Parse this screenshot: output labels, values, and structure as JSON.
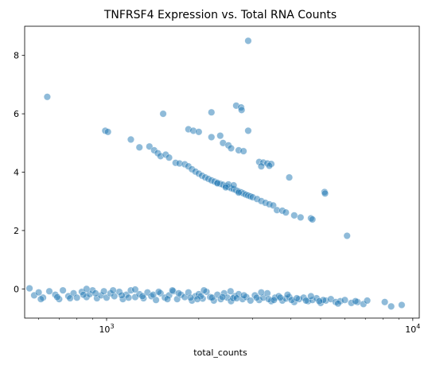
{
  "chart_data": {
    "type": "scatter",
    "title": "TNFRSF4 Expression vs. Total RNA Counts",
    "xlabel": "total_counts",
    "ylabel": "",
    "xscale": "log",
    "xlim": [
      540,
      10500
    ],
    "ylim": [
      -1.0,
      9.0
    ],
    "x_ticks": [
      {
        "value": 1000,
        "label": "10",
        "exp": "3"
      },
      {
        "value": 10000,
        "label": "10",
        "exp": "4"
      }
    ],
    "y_ticks": [
      {
        "value": 0,
        "label": "0"
      },
      {
        "value": 2,
        "label": "2"
      },
      {
        "value": 4,
        "label": "4"
      },
      {
        "value": 6,
        "label": "6"
      },
      {
        "value": 8,
        "label": "8"
      }
    ],
    "grid": false,
    "color": "#1f77b4",
    "series": [
      {
        "values": [
          [
            2900,
            8.5
          ],
          [
            640,
            6.58
          ],
          [
            990,
            5.42
          ],
          [
            1010,
            5.38
          ],
          [
            1530,
            6.0
          ],
          [
            2200,
            6.05
          ],
          [
            2650,
            6.28
          ],
          [
            2750,
            6.22
          ],
          [
            2760,
            6.13
          ],
          [
            1850,
            5.47
          ],
          [
            1920,
            5.42
          ],
          [
            2000,
            5.38
          ],
          [
            2350,
            5.25
          ],
          [
            2900,
            5.42
          ],
          [
            1200,
            5.12
          ],
          [
            2200,
            5.2
          ],
          [
            2400,
            5.0
          ],
          [
            2500,
            4.92
          ],
          [
            2550,
            4.82
          ],
          [
            2700,
            4.75
          ],
          [
            2800,
            4.72
          ],
          [
            1280,
            4.85
          ],
          [
            1380,
            4.88
          ],
          [
            1430,
            4.75
          ],
          [
            1470,
            4.65
          ],
          [
            1500,
            4.55
          ],
          [
            1560,
            4.6
          ],
          [
            1600,
            4.5
          ],
          [
            1680,
            4.32
          ],
          [
            1730,
            4.3
          ],
          [
            1800,
            4.27
          ],
          [
            1850,
            4.2
          ],
          [
            1900,
            4.1
          ],
          [
            1950,
            4.02
          ],
          [
            2000,
            3.95
          ],
          [
            2050,
            3.88
          ],
          [
            2100,
            3.82
          ],
          [
            2150,
            3.77
          ],
          [
            2200,
            3.72
          ],
          [
            2250,
            3.68
          ],
          [
            2300,
            3.64
          ],
          [
            2350,
            3.6
          ],
          [
            2400,
            3.57
          ],
          [
            2450,
            3.53
          ],
          [
            2500,
            3.49
          ],
          [
            2550,
            3.45
          ],
          [
            2600,
            3.42
          ],
          [
            2650,
            3.38
          ],
          [
            2700,
            3.34
          ],
          [
            2750,
            3.31
          ],
          [
            2800,
            3.27
          ],
          [
            2850,
            3.23
          ],
          [
            2900,
            3.2
          ],
          [
            2950,
            3.17
          ],
          [
            3000,
            3.14
          ],
          [
            3100,
            3.08
          ],
          [
            3200,
            3.01
          ],
          [
            3300,
            2.95
          ],
          [
            3400,
            2.9
          ],
          [
            3500,
            2.86
          ],
          [
            2500,
            3.58
          ],
          [
            2600,
            3.55
          ],
          [
            2300,
            3.62
          ],
          [
            2450,
            3.48
          ],
          [
            2700,
            3.3
          ],
          [
            3150,
            4.35
          ],
          [
            3250,
            4.33
          ],
          [
            3350,
            4.3
          ],
          [
            3450,
            4.28
          ],
          [
            3200,
            4.2
          ],
          [
            3400,
            4.22
          ],
          [
            3950,
            3.82
          ],
          [
            3600,
            2.7
          ],
          [
            3750,
            2.68
          ],
          [
            3850,
            2.62
          ],
          [
            4100,
            2.52
          ],
          [
            4300,
            2.45
          ],
          [
            4650,
            2.42
          ],
          [
            4700,
            2.38
          ],
          [
            5150,
            3.32
          ],
          [
            5170,
            3.27
          ],
          [
            6100,
            1.82
          ]
        ]
      },
      {
        "values": [
          [
            560,
            0.02
          ],
          [
            580,
            -0.22
          ],
          [
            600,
            -0.12
          ],
          [
            620,
            -0.3
          ],
          [
            650,
            -0.08
          ],
          [
            680,
            -0.2
          ],
          [
            700,
            -0.35
          ],
          [
            720,
            -0.05
          ],
          [
            750,
            -0.25
          ],
          [
            780,
            -0.15
          ],
          [
            800,
            -0.3
          ],
          [
            830,
            -0.1
          ],
          [
            860,
            -0.28
          ],
          [
            880,
            -0.18
          ],
          [
            900,
            -0.05
          ],
          [
            930,
            -0.32
          ],
          [
            960,
            -0.22
          ],
          [
            980,
            -0.08
          ],
          [
            1000,
            -0.3
          ],
          [
            1030,
            -0.15
          ],
          [
            1060,
            -0.25
          ],
          [
            1100,
            -0.1
          ],
          [
            1130,
            -0.35
          ],
          [
            1160,
            -0.2
          ],
          [
            1200,
            -0.05
          ],
          [
            1240,
            -0.28
          ],
          [
            1280,
            -0.18
          ],
          [
            1320,
            -0.32
          ],
          [
            1360,
            -0.12
          ],
          [
            1400,
            -0.25
          ],
          [
            1450,
            -0.38
          ],
          [
            1500,
            -0.15
          ],
          [
            1550,
            -0.3
          ],
          [
            1600,
            -0.22
          ],
          [
            1650,
            -0.08
          ],
          [
            1700,
            -0.35
          ],
          [
            1750,
            -0.2
          ],
          [
            1800,
            -0.28
          ],
          [
            1850,
            -0.12
          ],
          [
            1900,
            -0.4
          ],
          [
            1950,
            -0.25
          ],
          [
            2000,
            -0.18
          ],
          [
            2060,
            -0.33
          ],
          [
            2120,
            -0.1
          ],
          [
            2180,
            -0.28
          ],
          [
            2240,
            -0.4
          ],
          [
            2300,
            -0.2
          ],
          [
            2360,
            -0.35
          ],
          [
            2420,
            -0.15
          ],
          [
            2480,
            -0.3
          ],
          [
            2550,
            -0.42
          ],
          [
            2620,
            -0.25
          ],
          [
            2700,
            -0.18
          ],
          [
            2780,
            -0.35
          ],
          [
            2860,
            -0.28
          ],
          [
            2950,
            -0.4
          ],
          [
            3050,
            -0.22
          ],
          [
            3150,
            -0.38
          ],
          [
            3250,
            -0.3
          ],
          [
            3350,
            -0.15
          ],
          [
            3450,
            -0.42
          ],
          [
            3550,
            -0.3
          ],
          [
            3650,
            -0.25
          ],
          [
            3750,
            -0.4
          ],
          [
            3850,
            -0.33
          ],
          [
            3950,
            -0.28
          ],
          [
            4100,
            -0.45
          ],
          [
            4250,
            -0.35
          ],
          [
            4400,
            -0.3
          ],
          [
            4550,
            -0.42
          ],
          [
            4700,
            -0.38
          ],
          [
            4850,
            -0.32
          ],
          [
            5000,
            -0.48
          ],
          [
            5200,
            -0.4
          ],
          [
            5400,
            -0.35
          ],
          [
            5600,
            -0.45
          ],
          [
            5800,
            -0.42
          ],
          [
            6000,
            -0.38
          ],
          [
            6300,
            -0.48
          ],
          [
            6600,
            -0.45
          ],
          [
            6900,
            -0.52
          ],
          [
            7100,
            -0.4
          ],
          [
            8100,
            -0.45
          ],
          [
            8500,
            -0.6
          ],
          [
            9200,
            -0.55
          ],
          [
            610,
            -0.35
          ],
          [
            690,
            -0.28
          ],
          [
            760,
            -0.32
          ],
          [
            840,
            -0.2
          ],
          [
            920,
            -0.15
          ],
          [
            1050,
            -0.05
          ],
          [
            1180,
            -0.3
          ],
          [
            1310,
            -0.25
          ],
          [
            1420,
            -0.2
          ],
          [
            1580,
            -0.35
          ],
          [
            1720,
            -0.15
          ],
          [
            1880,
            -0.3
          ],
          [
            2030,
            -0.25
          ],
          [
            2210,
            -0.3
          ],
          [
            2390,
            -0.28
          ],
          [
            2590,
            -0.32
          ],
          [
            2810,
            -0.22
          ],
          [
            3090,
            -0.3
          ],
          [
            3380,
            -0.35
          ],
          [
            3690,
            -0.3
          ],
          [
            4020,
            -0.38
          ],
          [
            4480,
            -0.4
          ],
          [
            5100,
            -0.38
          ],
          [
            5700,
            -0.5
          ],
          [
            6500,
            -0.42
          ],
          [
            1120,
            -0.22
          ],
          [
            1480,
            -0.1
          ],
          [
            1980,
            -0.35
          ],
          [
            2660,
            -0.32
          ],
          [
            3520,
            -0.38
          ],
          [
            4180,
            -0.32
          ],
          [
            4950,
            -0.42
          ],
          [
            860,
            0.0
          ],
          [
            1240,
            -0.02
          ],
          [
            1640,
            -0.05
          ],
          [
            2080,
            -0.05
          ],
          [
            2540,
            -0.08
          ],
          [
            3200,
            -0.12
          ],
          [
            3900,
            -0.2
          ],
          [
            4650,
            -0.25
          ]
        ]
      }
    ]
  }
}
